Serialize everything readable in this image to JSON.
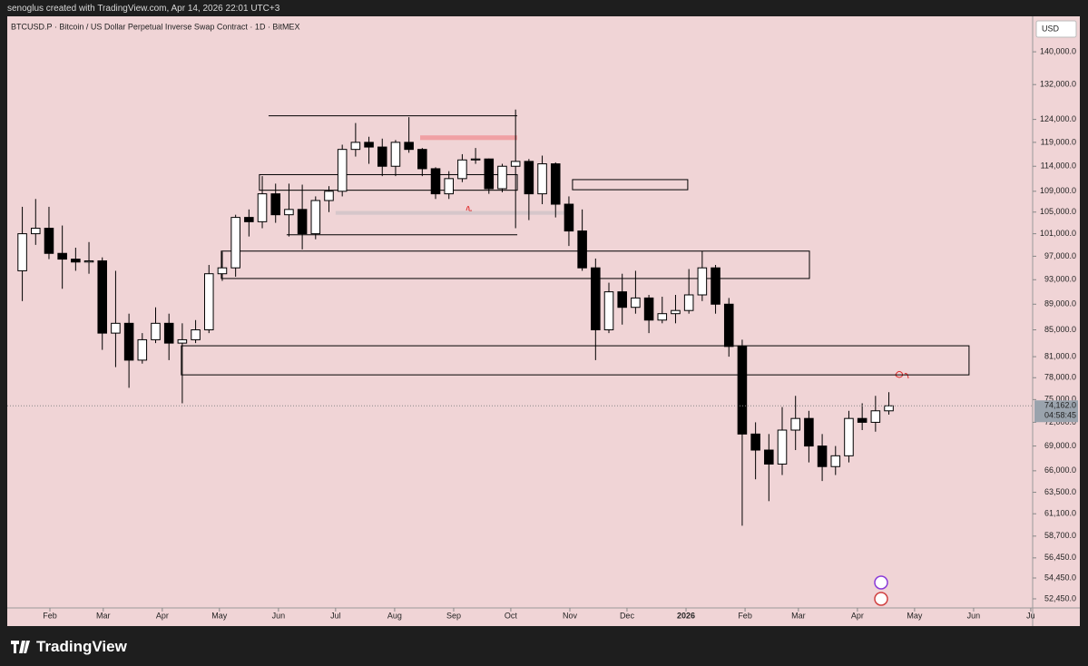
{
  "header": "senoglus created with TradingView.com, Apr 14, 2026 22:01 UTC+3",
  "footer": "TradingView",
  "chart_data": {
    "type": "candlestick",
    "title": "BTCUSD.P · Bitcoin / US Dollar Perpetual Inverse Swap Contract · 1D · BitMEX",
    "currency": "USD",
    "log_scale": true,
    "up_color": "#ffffff",
    "down_color": "#000000",
    "wick_color": "#000000",
    "x": [
      13,
      20,
      27,
      34,
      41,
      48,
      55,
      62,
      69,
      76,
      83,
      90,
      97,
      104,
      111,
      118,
      125,
      132,
      139,
      146,
      153,
      160,
      167,
      174,
      181,
      188,
      195,
      202,
      209,
      216,
      223,
      230,
      237,
      244,
      251,
      258,
      265,
      272,
      279,
      286,
      293,
      300,
      307,
      314,
      321,
      328,
      335,
      342,
      349,
      356,
      363,
      370,
      377,
      384,
      391,
      398,
      405,
      412,
      419,
      426,
      433,
      440,
      447,
      454,
      461,
      468
    ],
    "open": [
      94500,
      101000,
      102000,
      97500,
      96500,
      96000,
      96200,
      84500,
      86000,
      80500,
      83500,
      86000,
      83000,
      83500,
      85000,
      94000,
      95000,
      104000,
      103200,
      108500,
      104500,
      105500,
      101000,
      107200,
      109000,
      117500,
      119000,
      118000,
      114000,
      119000,
      117500,
      113500,
      108500,
      111500,
      115300,
      115500,
      109500,
      114000,
      115000,
      108500,
      114500,
      106500,
      101500,
      95000,
      85000,
      91000,
      88500,
      90000,
      86500,
      87500,
      88000,
      90500,
      95000,
      89000,
      82500,
      70500,
      68500,
      66800,
      71000,
      72500,
      69000,
      66500,
      67800,
      72500,
      72000,
      73500
    ],
    "high": [
      106000,
      107500,
      106000,
      102500,
      98500,
      99500,
      96800,
      94500,
      87500,
      84500,
      88500,
      87500,
      86000,
      86500,
      95500,
      97800,
      104500,
      105500,
      112000,
      110500,
      110500,
      110300,
      108000,
      110000,
      118500,
      123200,
      120200,
      119800,
      119500,
      124500,
      117800,
      113800,
      113000,
      116500,
      117800,
      115600,
      114500,
      126200,
      115500,
      116200,
      114800,
      108000,
      105500,
      96600,
      92500,
      94000,
      94500,
      90500,
      90200,
      90500,
      94800,
      97900,
      95500,
      90000,
      83500,
      72000,
      70500,
      74000,
      75500,
      73500,
      70500,
      69000,
      73500,
      74500,
      75500,
      76000
    ],
    "low": [
      89500,
      99000,
      96500,
      91500,
      94500,
      94000,
      82000,
      79500,
      76600,
      80000,
      83000,
      80500,
      74500,
      83000,
      84500,
      92800,
      93500,
      100500,
      102000,
      103000,
      100500,
      98200,
      100000,
      105000,
      108000,
      116000,
      114500,
      112000,
      112000,
      116800,
      112000,
      107500,
      107500,
      110800,
      114500,
      108500,
      108800,
      102000,
      103500,
      106500,
      104000,
      98800,
      94500,
      80500,
      84500,
      85800,
      87500,
      84500,
      86000,
      86000,
      87500,
      89500,
      87500,
      81000,
      59800,
      65000,
      62500,
      65500,
      68500,
      67000,
      64800,
      65500,
      67000,
      71000,
      70800,
      73000
    ],
    "close": [
      101000,
      102000,
      97500,
      96500,
      96000,
      96200,
      84500,
      86000,
      80500,
      83500,
      86000,
      83000,
      83500,
      85000,
      94000,
      95000,
      104000,
      103200,
      108500,
      104500,
      105500,
      101000,
      107200,
      109000,
      117500,
      119000,
      118000,
      114000,
      119000,
      117500,
      113500,
      108500,
      111500,
      115300,
      115500,
      109500,
      114000,
      115000,
      108500,
      114500,
      106500,
      101500,
      95000,
      85000,
      91000,
      88500,
      90000,
      86500,
      87500,
      88000,
      90500,
      95000,
      89000,
      82500,
      70500,
      68500,
      66800,
      71000,
      72500,
      69000,
      66500,
      67800,
      72500,
      72000,
      73500,
      74162
    ],
    "xlim": [
      8.6,
      547
    ],
    "xticks": [
      {
        "value": 31,
        "label": "Feb"
      },
      {
        "value": 59,
        "label": "Mar"
      },
      {
        "value": 90,
        "label": "Apr"
      },
      {
        "value": 120,
        "label": "May"
      },
      {
        "value": 151,
        "label": "Jun"
      },
      {
        "value": 181,
        "label": "Jul"
      },
      {
        "value": 212,
        "label": "Aug"
      },
      {
        "value": 243,
        "label": "Sep"
      },
      {
        "value": 273,
        "label": "Oct"
      },
      {
        "value": 304,
        "label": "Nov"
      },
      {
        "value": 334,
        "label": "Dec"
      },
      {
        "value": 365,
        "label": "2026"
      },
      {
        "value": 396,
        "label": "Feb"
      },
      {
        "value": 424,
        "label": "Mar"
      },
      {
        "value": 455,
        "label": "Apr"
      },
      {
        "value": 485,
        "label": "May"
      },
      {
        "value": 516,
        "label": "Jun"
      },
      {
        "value": 546,
        "label": "Ju"
      }
    ],
    "ylim": [
      51600,
      149200
    ],
    "yticks": [
      {
        "value": 140000,
        "label": "140,000.0"
      },
      {
        "value": 132000,
        "label": "132,000.0"
      },
      {
        "value": 124000,
        "label": "124,000.0"
      },
      {
        "value": 119000,
        "label": "119,000.0"
      },
      {
        "value": 114000,
        "label": "114,000.0"
      },
      {
        "value": 109000,
        "label": "109,000.0"
      },
      {
        "value": 105000,
        "label": "105,000.0"
      },
      {
        "value": 101000,
        "label": "101,000.0"
      },
      {
        "value": 97000,
        "label": "97,000.0"
      },
      {
        "value": 93000,
        "label": "93,000.0"
      },
      {
        "value": 89000,
        "label": "89,000.0"
      },
      {
        "value": 85000,
        "label": "85,000.0"
      },
      {
        "value": 81000,
        "label": "81,000.0"
      },
      {
        "value": 78000,
        "label": "78,000.0"
      },
      {
        "value": 75000,
        "label": "75,000.0"
      },
      {
        "value": 72000,
        "label": "72,000.0"
      },
      {
        "value": 69000,
        "label": "69,000.0"
      },
      {
        "value": 66000,
        "label": "66,000.0"
      },
      {
        "value": 63500,
        "label": "63,500.0"
      },
      {
        "value": 61100,
        "label": "61,100.0"
      },
      {
        "value": 58700,
        "label": "58,700.0"
      },
      {
        "value": 56450,
        "label": "56,450.0"
      },
      {
        "value": 54450,
        "label": "54,450.0"
      },
      {
        "value": 52450,
        "label": "52,450.0"
      }
    ],
    "zones": [
      {
        "x": [
          145.8,
          276.4
        ],
        "y": [
          124800,
          124800
        ],
        "color": "none"
      },
      {
        "x": [
          225.4,
          276.4
        ],
        "y": [
          120500,
          119500
        ],
        "color": "#f0a0a4"
      },
      {
        "x": [
          141,
          276.4
        ],
        "y": [
          112300,
          109200
        ],
        "color": "none"
      },
      {
        "x": [
          181,
          302.6
        ],
        "y": [
          105200,
          104500
        ],
        "color": "#d6c6ca"
      },
      {
        "x": [
          155.3,
          276.4
        ],
        "y": [
          100800,
          100800
        ],
        "color": "none"
      },
      {
        "x": [
          305.4,
          365.9
        ],
        "y": [
          111300,
          109300
        ],
        "color": "none"
      },
      {
        "x": [
          121,
          429.8
        ],
        "y": [
          97900,
          93200
        ],
        "color": "none"
      },
      {
        "x": [
          100,
          513.6
        ],
        "y": [
          82600,
          78400
        ],
        "color": "none"
      }
    ],
    "last_price": {
      "value": 74162,
      "label": "74,162.0"
    },
    "countdown": "04:58:45"
  }
}
